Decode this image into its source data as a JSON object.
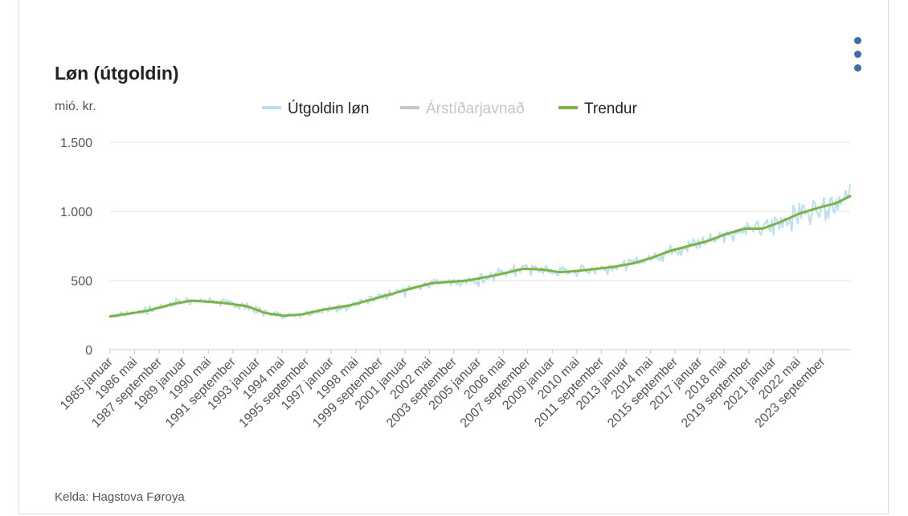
{
  "chart": {
    "title": "Løn (útgoldin)",
    "source": "Kelda: Hagstova Føroya",
    "menu_icon": "kebab-menu-icon"
  },
  "colors": {
    "raw": "#b9dff0",
    "seasonal": "#c6c6c6",
    "trend": "#7cb342",
    "grid": "#e3e3e3",
    "menu_dots": "#3c6fa8"
  },
  "chart_data": {
    "type": "line",
    "title": "Løn (útgoldin)",
    "ylabel": "mió. kr.",
    "ylim": [
      0,
      1500
    ],
    "yticks": [
      0,
      500,
      1000,
      1500
    ],
    "ytick_labels": [
      "0",
      "500",
      "1.000",
      "1.500"
    ],
    "x_range": [
      "1985-01",
      "2025-03"
    ],
    "xtick_labels": [
      "1985 januar",
      "1986 mai",
      "1987 september",
      "1989 januar",
      "1990 mai",
      "1991 september",
      "1993 januar",
      "1994 mai",
      "1995 september",
      "1997 januar",
      "1998 mai",
      "1999 september",
      "2001 januar",
      "2002 mai",
      "2003 september",
      "2005 januar",
      "2006 mai",
      "2007 september",
      "2009 januar",
      "2010 mai",
      "2011 september",
      "2013 januar",
      "2014 mai",
      "2015 september",
      "2017 januar",
      "2018 mai",
      "2019 september",
      "2021 januar",
      "2022 mai",
      "2023 september"
    ],
    "grid": true,
    "legend_position": "top",
    "legend": [
      {
        "name": "Útgoldin løn",
        "color": "#b9dff0",
        "active": true
      },
      {
        "name": "Árstíðarjavnað",
        "color": "#c6c6c6",
        "active": false
      },
      {
        "name": "Trendur",
        "color": "#7cb342",
        "active": true
      }
    ],
    "series": [
      {
        "name": "Trendur",
        "x": [
          "1985-01",
          "1987-01",
          "1988-06",
          "1989-06",
          "1991-01",
          "1992-06",
          "1993-06",
          "1994-06",
          "1995-06",
          "1996-06",
          "1998-01",
          "1999-06",
          "2001-01",
          "2002-06",
          "2003-06",
          "2004-06",
          "2006-01",
          "2007-06",
          "2008-06",
          "2009-06",
          "2010-06",
          "2011-06",
          "2012-06",
          "2013-06",
          "2014-06",
          "2015-06",
          "2016-06",
          "2017-06",
          "2018-06",
          "2019-06",
          "2020-06",
          "2021-06",
          "2022-06",
          "2023-06",
          "2024-06",
          "2025-03"
        ],
        "values": [
          240,
          280,
          330,
          355,
          340,
          315,
          265,
          245,
          255,
          285,
          320,
          370,
          430,
          480,
          490,
          500,
          540,
          585,
          580,
          560,
          570,
          585,
          600,
          625,
          665,
          715,
          750,
          785,
          835,
          875,
          875,
          925,
          985,
          1025,
          1060,
          1110
        ]
      },
      {
        "name": "Útgoldin løn",
        "x": [
          "1985-01",
          "1986-06",
          "1987-06",
          "1988-06",
          "1989-06",
          "1990-06",
          "1991-06",
          "1992-06",
          "1993-06",
          "1994-06",
          "1995-06",
          "1996-06",
          "1997-06",
          "1998-06",
          "1999-06",
          "2000-06",
          "2001-06",
          "2002-06",
          "2003-06",
          "2004-06",
          "2005-06",
          "2006-06",
          "2007-06",
          "2008-06",
          "2009-06",
          "2010-06",
          "2011-06",
          "2012-06",
          "2013-06",
          "2014-06",
          "2015-06",
          "2016-06",
          "2017-06",
          "2018-06",
          "2019-06",
          "2020-06",
          "2021-06",
          "2022-06",
          "2023-06",
          "2024-06",
          "2025-03"
        ],
        "values": [
          240,
          270,
          295,
          335,
          355,
          350,
          335,
          310,
          265,
          245,
          255,
          280,
          300,
          330,
          365,
          400,
          445,
          480,
          490,
          495,
          515,
          555,
          585,
          575,
          560,
          570,
          580,
          600,
          625,
          660,
          715,
          745,
          785,
          830,
          870,
          870,
          920,
          980,
          1020,
          1060,
          1110
        ],
        "spread": [
          30,
          40,
          45,
          50,
          50,
          45,
          45,
          45,
          45,
          40,
          35,
          40,
          45,
          45,
          50,
          55,
          60,
          60,
          65,
          65,
          70,
          70,
          75,
          70,
          60,
          60,
          60,
          60,
          60,
          70,
          70,
          75,
          80,
          85,
          90,
          95,
          110,
          130,
          150,
          150,
          150
        ]
      }
    ]
  }
}
